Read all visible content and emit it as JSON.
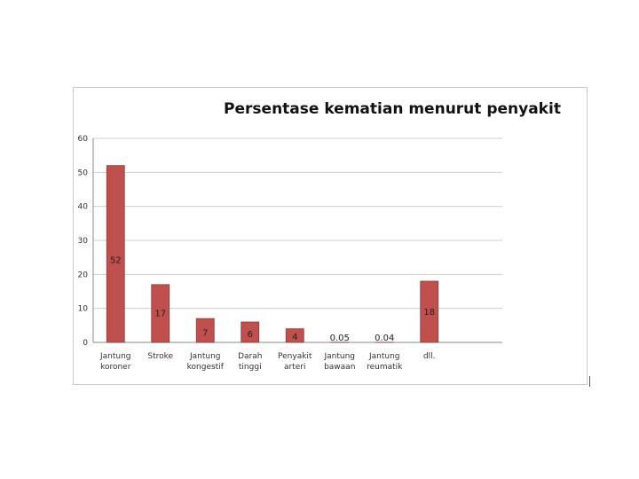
{
  "chart_data": {
    "type": "bar",
    "title": "Persentase kematian menurut penyakit",
    "categories": [
      [
        "Jantung",
        "koroner"
      ],
      [
        "Stroke"
      ],
      [
        "Jantung",
        "kongestif"
      ],
      [
        "Darah",
        "tinggi"
      ],
      [
        "Penyakit",
        "arteri"
      ],
      [
        "Jantung",
        "bawaan"
      ],
      [
        "Jantung",
        "reumatik"
      ],
      [
        "dll."
      ]
    ],
    "values": [
      52,
      17,
      7,
      6,
      4,
      0.05,
      0.04,
      18
    ],
    "data_labels": [
      "52",
      "17",
      "7",
      "6",
      "4",
      "0.05",
      "0.04",
      "18"
    ],
    "yticks": [
      "0",
      "10",
      "20",
      "30",
      "40",
      "50",
      "60"
    ],
    "ylim": [
      0,
      60
    ],
    "grid": true,
    "legend": "none",
    "bar_color": "#c0504d",
    "bar_border": "#8c3a38"
  }
}
